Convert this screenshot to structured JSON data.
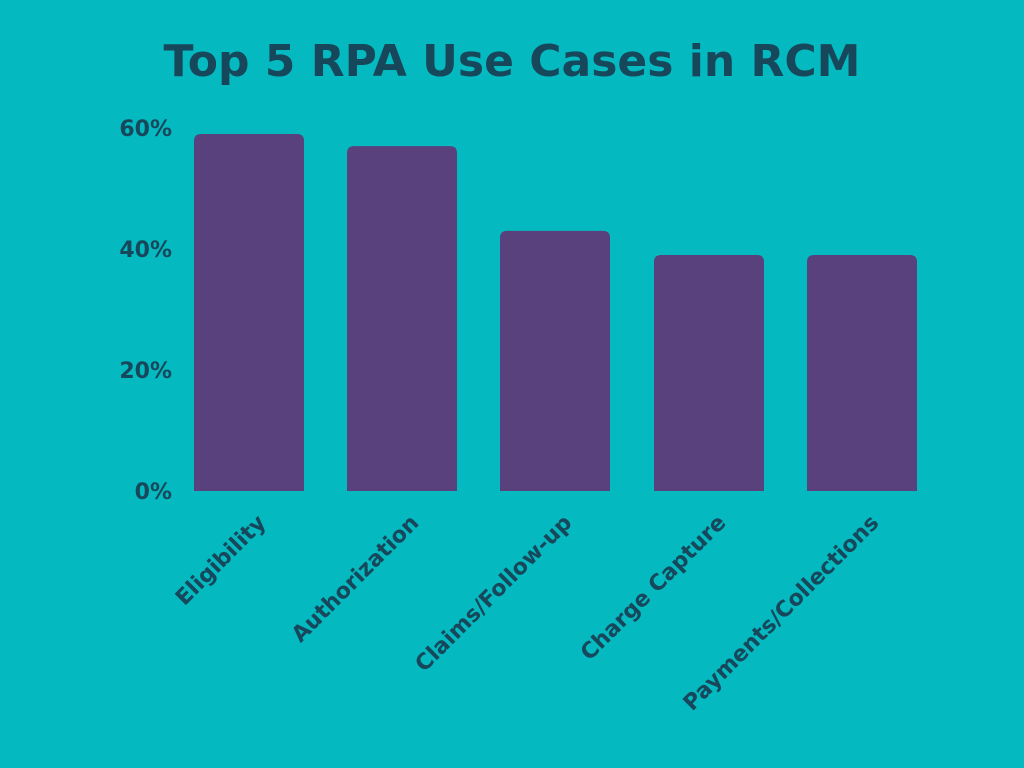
{
  "colors": {
    "background": "#05b9c0",
    "bar": "#58417c",
    "text": "#17475a"
  },
  "chart_data": {
    "type": "bar",
    "title": "Top 5 RPA Use Cases in RCM",
    "xlabel": "",
    "ylabel": "",
    "categories": [
      "Eligibility",
      "Authorization",
      "Claims/Follow-up",
      "Charge Capture",
      "Payments/Collections"
    ],
    "values": [
      59,
      57,
      43,
      39,
      39
    ],
    "ylim": [
      0,
      60
    ],
    "yticks": [
      0,
      20,
      40,
      60
    ],
    "ytick_labels": [
      "0%",
      "20%",
      "40%",
      "60%"
    ],
    "grid": false,
    "legend": "none"
  }
}
